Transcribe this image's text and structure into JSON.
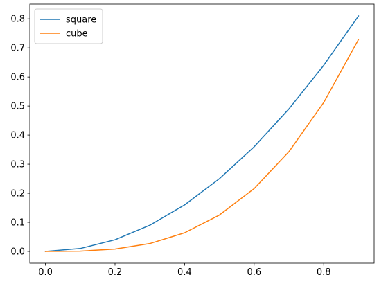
{
  "chart_data": {
    "type": "line",
    "title": "",
    "xlabel": "",
    "ylabel": "",
    "x": [
      0.0,
      0.1,
      0.2,
      0.3,
      0.4,
      0.5,
      0.6,
      0.7,
      0.8,
      0.9
    ],
    "series": [
      {
        "name": "square",
        "color": "#1f77b4",
        "values": [
          0.0,
          0.01,
          0.04,
          0.09,
          0.16,
          0.25,
          0.36,
          0.49,
          0.64,
          0.81
        ]
      },
      {
        "name": "cube",
        "color": "#ff7f0e",
        "values": [
          0.0,
          0.001,
          0.008,
          0.027,
          0.064,
          0.125,
          0.216,
          0.343,
          0.512,
          0.729
        ]
      }
    ],
    "xlim": [
      -0.045,
      0.945
    ],
    "ylim": [
      -0.0405,
      0.8505
    ],
    "xticks": [
      0.0,
      0.2,
      0.4,
      0.6,
      0.8
    ],
    "xtick_labels": [
      "0.0",
      "0.2",
      "0.4",
      "0.6",
      "0.8"
    ],
    "yticks": [
      0.0,
      0.1,
      0.2,
      0.3,
      0.4,
      0.5,
      0.6,
      0.7,
      0.8
    ],
    "ytick_labels": [
      "0.0",
      "0.1",
      "0.2",
      "0.3",
      "0.4",
      "0.5",
      "0.6",
      "0.7",
      "0.8"
    ],
    "grid": false,
    "legend": {
      "position": "top-left"
    }
  }
}
